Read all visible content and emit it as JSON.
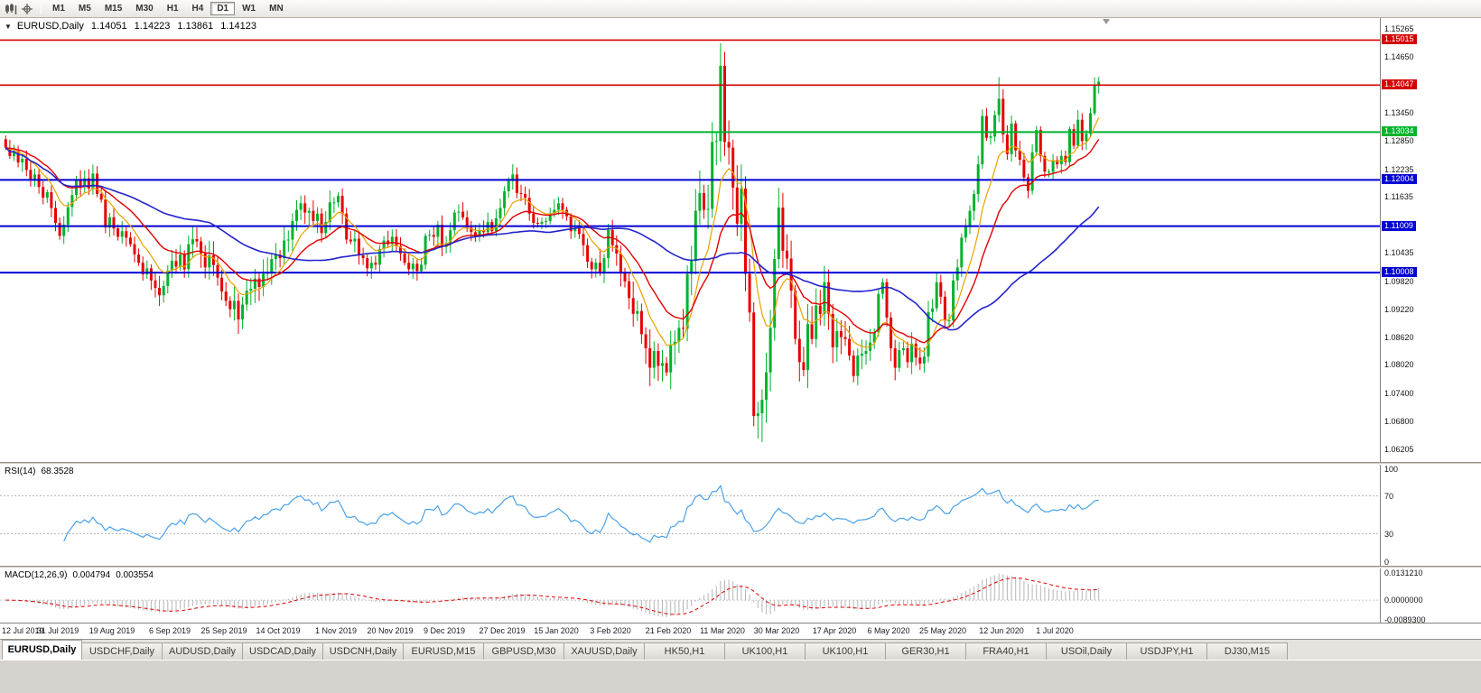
{
  "toolbar": {
    "left_icons": [
      "candlestick-chart-icon",
      "crosshair-icon"
    ],
    "timeframes": [
      {
        "label": "M1"
      },
      {
        "label": "M5"
      },
      {
        "label": "M15"
      },
      {
        "label": "M30"
      },
      {
        "label": "H1"
      },
      {
        "label": "H4"
      },
      {
        "label": "D1",
        "active": true
      },
      {
        "label": "W1"
      },
      {
        "label": "MN"
      }
    ]
  },
  "chart": {
    "header": {
      "dropdown_icon": "▼",
      "symbol": "EURUSD,Daily",
      "open": "1.14051",
      "high": "1.14223",
      "low": "1.13861",
      "close": "1.14123"
    },
    "price_axis": {
      "view_max": 1.1549,
      "view_min": 1.0593,
      "ticks": [
        "1.15265",
        "1.14650",
        "1.13450",
        "1.12850",
        "1.12235",
        "1.11635",
        "1.10435",
        "1.09820",
        "1.09220",
        "1.08620",
        "1.08020",
        "1.07400",
        "1.06800",
        "1.06205"
      ]
    },
    "hlines": [
      {
        "price": 1.15015,
        "label": "1.15015",
        "color": "#d40000",
        "width": 1.6
      },
      {
        "price": 1.14047,
        "label": "1.14047",
        "color": "#d40000",
        "width": 1.6
      },
      {
        "price": 1.13034,
        "label": "1.13034",
        "color": "#00b22d",
        "width": 2
      },
      {
        "price": 1.12004,
        "label": "1.12004",
        "color": "#0000d4",
        "width": 2
      },
      {
        "price": 1.11009,
        "label": "1.11009",
        "color": "#0000d4",
        "width": 2
      },
      {
        "price": 1.10008,
        "label": "1.10008",
        "color": "#0000d4",
        "width": 2
      }
    ]
  },
  "chart_data": {
    "type": "candlestick",
    "symbol": "EURUSD",
    "timeframe": "Daily",
    "first_open": 1.1288,
    "x_labels": [
      "12 Jul 2019",
      "31 Jul 2019",
      "19 Aug 2019",
      "6 Sep 2019",
      "25 Sep 2019",
      "14 Oct 2019",
      "1 Nov 2019",
      "20 Nov 2019",
      "9 Dec 2019",
      "27 Dec 2019",
      "15 Jan 2020",
      "3 Feb 2020",
      "21 Feb 2020",
      "11 Mar 2020",
      "30 Mar 2020",
      "17 Apr 2020",
      "6 May 2020",
      "25 May 2020",
      "12 Jun 2020",
      "1 Jul 2020"
    ],
    "x_label_bars": [
      0,
      13,
      26,
      40,
      53,
      66,
      80,
      93,
      106,
      120,
      133,
      146,
      160,
      173,
      186,
      200,
      213,
      226,
      240,
      253
    ],
    "closes": [
      1.127,
      1.1252,
      1.1262,
      1.1238,
      1.1246,
      1.1222,
      1.12,
      1.1212,
      1.1185,
      1.1162,
      1.1174,
      1.114,
      1.1108,
      1.108,
      1.1104,
      1.1142,
      1.1168,
      1.12,
      1.1186,
      1.1204,
      1.1182,
      1.1214,
      1.117,
      1.1158,
      1.1098,
      1.112,
      1.1096,
      1.1078,
      1.109,
      1.1076,
      1.1062,
      1.104,
      1.1022,
      1.0997,
      1.101,
      1.0984,
      1.0968,
      1.0952,
      1.0972,
      1.1005,
      1.1026,
      1.1014,
      1.104,
      1.1008,
      1.1062,
      1.1073,
      1.1068,
      1.1042,
      1.1012,
      1.1038,
      1.1017,
      1.099,
      1.096,
      1.094,
      1.0922,
      1.094,
      1.09,
      1.0932,
      1.0962,
      1.0966,
      1.0988,
      1.097,
      1.0998,
      1.1002,
      1.103,
      1.104,
      1.1032,
      1.107,
      1.1072,
      1.1112,
      1.1136,
      1.115,
      1.113,
      1.1134,
      1.1112,
      1.1128,
      1.1086,
      1.111,
      1.1152,
      1.1152,
      1.1166,
      1.1128,
      1.1072,
      1.1068,
      1.1074,
      1.1038,
      1.1032,
      1.101,
      1.1022,
      1.1018,
      1.1052,
      1.107,
      1.1062,
      1.1078,
      1.1058,
      1.1042,
      1.1022,
      1.1008,
      1.102,
      1.1004,
      1.1018,
      1.108,
      1.1082,
      1.1078,
      1.1104,
      1.1056,
      1.1064,
      1.1092,
      1.113,
      1.1132,
      1.112,
      1.1098,
      1.1088,
      1.1078,
      1.1092,
      1.1088,
      1.111,
      1.109,
      1.1118,
      1.114,
      1.1176,
      1.1198,
      1.1212,
      1.1172,
      1.117,
      1.1162,
      1.1128,
      1.1108,
      1.1106,
      1.111,
      1.1112,
      1.1128,
      1.1136,
      1.115,
      1.1136,
      1.1122,
      1.109,
      1.1096,
      1.1084,
      1.106,
      1.1024,
      1.1008,
      1.1022,
      1.1002,
      1.1032,
      1.1093,
      1.106,
      1.1042,
      1.1,
      1.0982,
      1.0946,
      1.0912,
      1.0918,
      1.0868,
      1.0838,
      1.0796,
      1.0832,
      1.08,
      1.0806,
      1.0786,
      1.0846,
      1.0852,
      1.0882,
      1.088,
      1.0998,
      1.1026,
      1.1134,
      1.1172,
      1.1136,
      1.1138,
      1.1282,
      1.1284,
      1.1446,
      1.1282,
      1.127,
      1.1184,
      1.1106,
      1.1182,
      1.0998,
      1.0915,
      1.0692,
      1.0698,
      1.0727,
      1.0786,
      1.0882,
      1.103,
      1.1141,
      1.1048,
      1.1031,
      1.0962,
      1.0858,
      1.0808,
      1.0791,
      1.089,
      1.0858,
      1.093,
      1.0912,
      1.098,
      1.0912,
      1.084,
      1.0875,
      1.0862,
      1.0858,
      1.0822,
      1.0778,
      1.0822,
      1.0826,
      1.0832,
      1.085,
      1.0872,
      1.0955,
      1.098,
      1.0904,
      1.0838,
      1.0796,
      1.0834,
      1.0838,
      1.0808,
      1.0848,
      1.0818,
      1.0805,
      1.082,
      1.0916,
      1.0924,
      1.098,
      1.0949,
      1.0898,
      1.0898,
      1.0984,
      1.1012,
      1.1076,
      1.1102,
      1.1134,
      1.117,
      1.1234,
      1.1338,
      1.1291,
      1.1294,
      1.134,
      1.1375,
      1.1298,
      1.1256,
      1.1322,
      1.1264,
      1.1244,
      1.1206,
      1.1177,
      1.126,
      1.1308,
      1.1252,
      1.1218,
      1.1218,
      1.1243,
      1.1234,
      1.1252,
      1.1239,
      1.131,
      1.1274,
      1.133,
      1.1284,
      1.13,
      1.1344,
      1.1405,
      1.14123
    ],
    "overrides": {
      "22": {
        "high": 1.123
      },
      "57": {
        "low": 1.0879
      },
      "159": {
        "low": 1.0778
      },
      "172": {
        "high": 1.1495
      },
      "180": {
        "low": 1.067
      },
      "182": {
        "low": 1.0636
      },
      "239": {
        "high": 1.1422
      },
      "263": {
        "high": 1.14223,
        "low": 1.13861
      }
    },
    "moving_averages": [
      {
        "name": "fast",
        "type": "ema",
        "period": 9,
        "color": "#e8a200",
        "width": 1.2
      },
      {
        "name": "medium",
        "type": "ema",
        "period": 20,
        "color": "#e00000",
        "width": 1.4
      },
      {
        "name": "slow",
        "type": "sma",
        "period": 50,
        "color": "#2424cc",
        "width": 1.6
      }
    ]
  },
  "rsi": {
    "label": "RSI(14)",
    "value": "68.3528",
    "period": 14,
    "levels": [
      100,
      70,
      30,
      0
    ],
    "level_lines": [
      70,
      30
    ],
    "color": "#4aa1e8"
  },
  "macd": {
    "label": "MACD(12,26,9)",
    "value_main": "0.004794",
    "value_signal": "0.003554",
    "fast": 12,
    "slow": 26,
    "signal": 9,
    "range": [
      -0.00893,
      0.013121
    ],
    "axis_labels": [
      "0.0131210",
      "0.0000000",
      "-0.0089300"
    ],
    "histogram_color": "#b5b5b5",
    "signal_color": "#e00000"
  },
  "tabs": [
    {
      "label": "EURUSD,Daily",
      "active": true
    },
    {
      "label": "USDCHF,Daily"
    },
    {
      "label": "AUDUSD,Daily"
    },
    {
      "label": "USDCAD,Daily"
    },
    {
      "label": "USDCNH,Daily"
    },
    {
      "label": "EURUSD,M15"
    },
    {
      "label": "GBPUSD,M30"
    },
    {
      "label": "XAUUSD,Daily"
    },
    {
      "label": "HK50,H1"
    },
    {
      "label": "UK100,H1"
    },
    {
      "label": "UK100,H1"
    },
    {
      "label": "GER30,H1"
    },
    {
      "label": "FRA40,H1"
    },
    {
      "label": "USOil,Daily"
    },
    {
      "label": "USDJPY,H1"
    },
    {
      "label": "DJ30,M15"
    }
  ],
  "colors": {
    "bull": "#00b22d",
    "bear": "#e60000",
    "grid_dotted": "#b9b9b9"
  }
}
